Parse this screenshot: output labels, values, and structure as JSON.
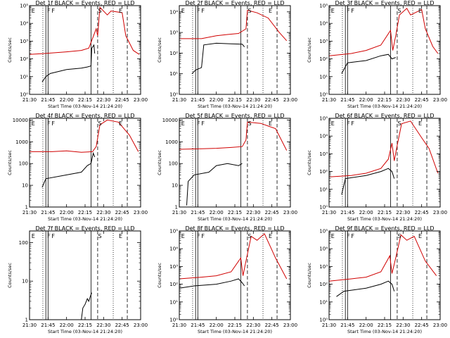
{
  "figure": {
    "xlabel": "Start Time (03-Nov-14 21:24:20)",
    "ylabel": "Counts/sec",
    "colors": {
      "events": "#000000",
      "lld": "#d00000",
      "flag": "#000000"
    }
  },
  "chart_data": [
    {
      "type": "line",
      "title": "Det 1f BLACK = Events, RED = LLD",
      "ylog": true,
      "xlim": [
        "21:30",
        "23:00"
      ],
      "xticks": [
        "21:30",
        "21:45",
        "22:00",
        "22:15",
        "22:30",
        "22:45",
        "23:00"
      ],
      "ylim": [
        1,
        100000
      ],
      "yticks": [
        "10⁰",
        "10¹",
        "10²",
        "10³",
        "10⁴",
        "10⁵"
      ],
      "flags": [
        "E",
        "F",
        "F",
        "S",
        "E"
      ],
      "series": [
        {
          "role": "events",
          "points": [
            [
              21.67,
              5
            ],
            [
              21.72,
              10
            ],
            [
              21.78,
              15
            ],
            [
              22.0,
              25
            ],
            [
              22.2,
              30
            ],
            [
              22.28,
              35
            ],
            [
              22.33,
              40
            ],
            [
              22.34,
              400
            ],
            [
              22.37,
              600
            ],
            [
              22.38,
              200
            ]
          ]
        },
        {
          "role": "lld",
          "points": [
            [
              21.5,
              180
            ],
            [
              21.7,
              200
            ],
            [
              22.0,
              250
            ],
            [
              22.2,
              300
            ],
            [
              22.3,
              400
            ],
            [
              22.38,
              3000
            ],
            [
              22.4,
              5000
            ],
            [
              22.42,
              2000
            ],
            [
              22.45,
              80000
            ],
            [
              22.55,
              30000
            ],
            [
              22.6,
              50000
            ],
            [
              22.75,
              40000
            ],
            [
              22.8,
              2000
            ],
            [
              22.9,
              300
            ],
            [
              22.98,
              180
            ]
          ]
        }
      ]
    },
    {
      "type": "line",
      "title": "Det 2f BLACK = Events, RED = LLD",
      "ylog": true,
      "xlim": [
        "21:30",
        "23:00"
      ],
      "xticks": [
        "21:30",
        "21:45",
        "22:00",
        "22:15",
        "22:30",
        "22:45",
        "23:00"
      ],
      "ylim": [
        1,
        20000
      ],
      "yticks": [
        "10⁰",
        "10¹",
        "10²",
        "10³",
        "10⁴"
      ],
      "flags": [
        "E",
        "F",
        "F",
        "S",
        "E"
      ],
      "series": [
        {
          "role": "events",
          "points": [
            [
              21.67,
              10
            ],
            [
              21.72,
              15
            ],
            [
              21.8,
              20
            ],
            [
              21.83,
              250
            ],
            [
              22.0,
              300
            ],
            [
              22.2,
              280
            ],
            [
              22.35,
              270
            ],
            [
              22.38,
              200
            ]
          ]
        },
        {
          "role": "lld",
          "points": [
            [
              21.5,
              500
            ],
            [
              21.8,
              500
            ],
            [
              22.0,
              700
            ],
            [
              22.15,
              800
            ],
            [
              22.3,
              900
            ],
            [
              22.4,
              1500
            ],
            [
              22.42,
              12000
            ],
            [
              22.55,
              9000
            ],
            [
              22.7,
              5000
            ],
            [
              22.85,
              1000
            ],
            [
              22.95,
              400
            ]
          ]
        }
      ]
    },
    {
      "type": "line",
      "title": "Det 3f BLACK = Events, RED = LLD",
      "ylog": true,
      "xlim": [
        "21:30",
        "23:00"
      ],
      "xticks": [
        "21:30",
        "21:45",
        "22:00",
        "22:15",
        "22:30",
        "22:45",
        "23:00"
      ],
      "ylim": [
        1,
        100000
      ],
      "yticks": [
        "10⁰",
        "10¹",
        "10²",
        "10³",
        "10⁴",
        "10⁵"
      ],
      "flags": [
        "E",
        "F",
        "F",
        "S",
        "E"
      ],
      "series": [
        {
          "role": "events",
          "points": [
            [
              21.67,
              15
            ],
            [
              21.75,
              60
            ],
            [
              22.0,
              80
            ],
            [
              22.2,
              150
            ],
            [
              22.3,
              180
            ],
            [
              22.35,
              100
            ],
            [
              22.4,
              120
            ]
          ]
        },
        {
          "role": "lld",
          "points": [
            [
              21.5,
              150
            ],
            [
              21.8,
              200
            ],
            [
              22.0,
              300
            ],
            [
              22.2,
              600
            ],
            [
              22.33,
              4000
            ],
            [
              22.36,
              300
            ],
            [
              22.4,
              2000
            ],
            [
              22.45,
              30000
            ],
            [
              22.55,
              70000
            ],
            [
              22.6,
              30000
            ],
            [
              22.75,
              60000
            ],
            [
              22.8,
              5000
            ],
            [
              22.9,
              500
            ],
            [
              22.97,
              200
            ]
          ]
        }
      ]
    },
    {
      "type": "line",
      "title": "Det 4f BLACK = Events, RED = LLD",
      "ylog": true,
      "xlim": [
        "21:30",
        "23:00"
      ],
      "xticks": [
        "21:30",
        "21:45",
        "22:00",
        "22:15",
        "22:30",
        "22:45",
        "23:00"
      ],
      "ylim": [
        1,
        12000
      ],
      "yticks": [
        "1",
        "10",
        "100",
        "1000",
        "10000"
      ],
      "flags": [
        "E",
        "F",
        "F",
        "S",
        "E"
      ],
      "series": [
        {
          "role": "events",
          "points": [
            [
              21.67,
              8
            ],
            [
              21.72,
              20
            ],
            [
              22.0,
              30
            ],
            [
              22.2,
              40
            ],
            [
              22.28,
              80
            ],
            [
              22.33,
              100
            ],
            [
              22.36,
              300
            ],
            [
              22.38,
              200
            ]
          ]
        },
        {
          "role": "lld",
          "points": [
            [
              21.5,
              350
            ],
            [
              21.8,
              350
            ],
            [
              22.0,
              380
            ],
            [
              22.2,
              330
            ],
            [
              22.35,
              350
            ],
            [
              22.4,
              600
            ],
            [
              22.45,
              6000
            ],
            [
              22.55,
              10000
            ],
            [
              22.7,
              8000
            ],
            [
              22.85,
              2000
            ],
            [
              22.97,
              350
            ]
          ]
        }
      ]
    },
    {
      "type": "line",
      "title": "Det 5f BLACK = Events, RED = LLD",
      "ylog": true,
      "xlim": [
        "21:30",
        "23:00"
      ],
      "xticks": [
        "21:30",
        "21:45",
        "22:00",
        "22:15",
        "22:30",
        "22:45",
        "23:00"
      ],
      "ylim": [
        1,
        12000
      ],
      "yticks": [
        "1",
        "10",
        "100",
        "1000",
        "10000"
      ],
      "flags": [
        "E",
        "F",
        "F",
        "S",
        "E"
      ],
      "series": [
        {
          "role": "events",
          "points": [
            [
              21.6,
              1.2
            ],
            [
              21.62,
              15
            ],
            [
              21.7,
              30
            ],
            [
              21.9,
              40
            ],
            [
              22.0,
              80
            ],
            [
              22.15,
              100
            ],
            [
              22.3,
              80
            ],
            [
              22.35,
              100
            ]
          ]
        },
        {
          "role": "lld",
          "points": [
            [
              21.5,
              450
            ],
            [
              21.8,
              480
            ],
            [
              22.0,
              500
            ],
            [
              22.2,
              550
            ],
            [
              22.35,
              600
            ],
            [
              22.4,
              1200
            ],
            [
              22.42,
              8000
            ],
            [
              22.6,
              7000
            ],
            [
              22.8,
              4000
            ],
            [
              22.95,
              400
            ]
          ]
        }
      ]
    },
    {
      "type": "line",
      "title": "Det 6f BLACK = Events, RED = LLD",
      "ylog": true,
      "xlim": [
        "21:30",
        "23:00"
      ],
      "xticks": [
        "21:30",
        "21:45",
        "22:00",
        "22:15",
        "22:30",
        "22:45",
        "23:00"
      ],
      "ylim": [
        1,
        100000
      ],
      "yticks": [
        "10⁰",
        "10¹",
        "10²",
        "10³",
        "10⁴",
        "10⁵"
      ],
      "flags": [
        "E",
        "F",
        "F",
        "S",
        "E"
      ],
      "series": [
        {
          "role": "events",
          "points": [
            [
              21.67,
              5
            ],
            [
              21.72,
              40
            ],
            [
              22.0,
              60
            ],
            [
              22.2,
              100
            ],
            [
              22.3,
              150
            ],
            [
              22.35,
              100
            ],
            [
              22.38,
              40
            ]
          ]
        },
        {
          "role": "lld",
          "points": [
            [
              21.5,
              50
            ],
            [
              21.8,
              60
            ],
            [
              22.0,
              80
            ],
            [
              22.2,
              150
            ],
            [
              22.3,
              500
            ],
            [
              22.35,
              4000
            ],
            [
              22.38,
              400
            ],
            [
              22.42,
              3000
            ],
            [
              22.48,
              50000
            ],
            [
              22.6,
              70000
            ],
            [
              22.75,
              8000
            ],
            [
              22.85,
              2000
            ],
            [
              22.97,
              80
            ]
          ]
        }
      ]
    },
    {
      "type": "line",
      "title": "Det 7f BLACK = Events, RED = LLD",
      "ylog": true,
      "xlim": [
        "21:30",
        "23:00"
      ],
      "xticks": [
        "21:30",
        "21:45",
        "22:00",
        "22:15",
        "22:30",
        "22:45",
        "23:00"
      ],
      "ylim": [
        1,
        200
      ],
      "yticks": [
        "1",
        "10",
        "100"
      ],
      "flags": [
        "E",
        "F",
        "F",
        "S",
        "E"
      ],
      "series": [
        {
          "role": "events",
          "points": [
            [
              22.2,
              1
            ],
            [
              22.22,
              2
            ],
            [
              22.25,
              2.5
            ],
            [
              22.28,
              3.5
            ],
            [
              22.3,
              3
            ],
            [
              22.32,
              4
            ],
            [
              22.34,
              5
            ]
          ]
        }
      ]
    },
    {
      "type": "line",
      "title": "Det 8f BLACK = Events, RED = LLD",
      "ylog": true,
      "xlim": [
        "21:30",
        "23:00"
      ],
      "xticks": [
        "21:30",
        "21:45",
        "22:00",
        "22:15",
        "22:30",
        "22:45",
        "23:00"
      ],
      "ylim": [
        1,
        100000
      ],
      "yticks": [
        "10⁰",
        "10¹",
        "10²",
        "10³",
        "10⁴",
        "10⁵"
      ],
      "flags": [
        "E",
        "F",
        "F",
        "S",
        "E"
      ],
      "series": [
        {
          "role": "events",
          "points": [
            [
              21.5,
              60
            ],
            [
              21.7,
              80
            ],
            [
              22.0,
              100
            ],
            [
              22.2,
              150
            ],
            [
              22.3,
              200
            ],
            [
              22.35,
              120
            ],
            [
              22.38,
              80
            ]
          ]
        },
        {
          "role": "lld",
          "points": [
            [
              21.5,
              200
            ],
            [
              21.8,
              250
            ],
            [
              22.0,
              300
            ],
            [
              22.2,
              500
            ],
            [
              22.33,
              3000
            ],
            [
              22.36,
              300
            ],
            [
              22.4,
              2000
            ],
            [
              22.47,
              50000
            ],
            [
              22.55,
              30000
            ],
            [
              22.65,
              70000
            ],
            [
              22.8,
              3000
            ],
            [
              22.95,
              200
            ]
          ]
        }
      ]
    },
    {
      "type": "line",
      "title": "Det 9f BLACK = Events, RED = LLD",
      "ylog": true,
      "xlim": [
        "21:30",
        "23:00"
      ],
      "xticks": [
        "21:30",
        "21:45",
        "22:00",
        "22:15",
        "22:30",
        "22:45",
        "23:00"
      ],
      "ylim": [
        1,
        100000
      ],
      "yticks": [
        "10⁰",
        "10¹",
        "10²",
        "10³",
        "10⁴",
        "10⁵"
      ],
      "flags": [
        "E",
        "F",
        "F",
        "S",
        "E"
      ],
      "series": [
        {
          "role": "events",
          "points": [
            [
              21.6,
              20
            ],
            [
              21.7,
              40
            ],
            [
              22.0,
              60
            ],
            [
              22.2,
              100
            ],
            [
              22.3,
              150
            ],
            [
              22.35,
              100
            ],
            [
              22.38,
              40
            ]
          ]
        },
        {
          "role": "lld",
          "points": [
            [
              21.5,
              150
            ],
            [
              21.8,
              200
            ],
            [
              22.0,
              250
            ],
            [
              22.2,
              500
            ],
            [
              22.32,
              4000
            ],
            [
              22.35,
              400
            ],
            [
              22.4,
              3000
            ],
            [
              22.47,
              60000
            ],
            [
              22.55,
              30000
            ],
            [
              22.65,
              50000
            ],
            [
              22.8,
              2000
            ],
            [
              22.95,
              300
            ]
          ]
        }
      ]
    }
  ]
}
